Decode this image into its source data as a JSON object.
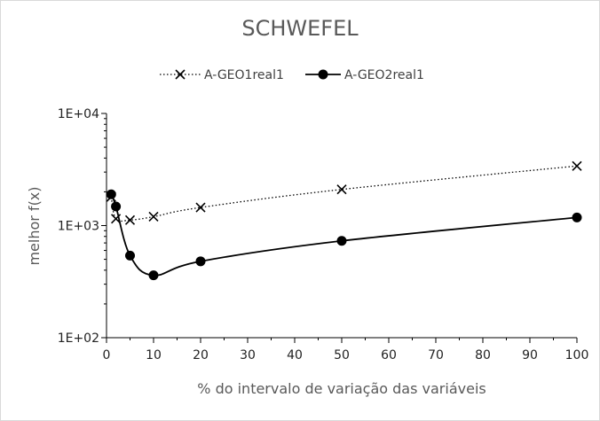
{
  "chart_data": {
    "type": "line",
    "title": "SCHWEFEL",
    "xlabel": "% do intervalo de variação das variáveis",
    "ylabel": "melhor f(x)",
    "xlim": [
      0,
      100
    ],
    "ylim": [
      100,
      10000
    ],
    "yscale": "log",
    "x_ticks": [
      "0",
      "10",
      "20",
      "30",
      "40",
      "50",
      "60",
      "70",
      "80",
      "90",
      "100"
    ],
    "y_ticks": [
      "1E+02",
      "1E+03",
      "1E+04"
    ],
    "grid": false,
    "legend_position": "top",
    "series": [
      {
        "name": "A-GEO1real1",
        "marker": "x",
        "line_style": "dotted",
        "color": "#000000",
        "x": [
          1,
          2,
          5,
          10,
          20,
          50,
          100
        ],
        "y": [
          1800,
          1150,
          1120,
          1200,
          1450,
          2100,
          3400
        ]
      },
      {
        "name": "A-GEO2real1",
        "marker": "circle",
        "line_style": "solid",
        "color": "#000000",
        "x": [
          1,
          2,
          5,
          10,
          20,
          50,
          100
        ],
        "y": [
          1900,
          1480,
          540,
          360,
          480,
          730,
          1180
        ]
      }
    ]
  }
}
